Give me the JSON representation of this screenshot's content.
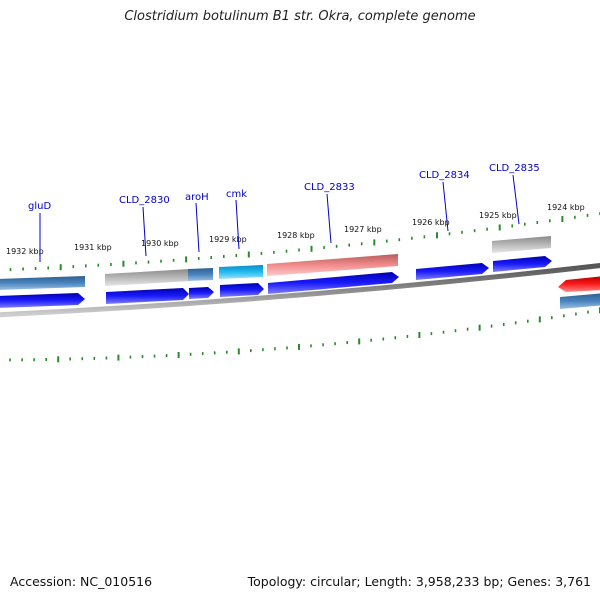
{
  "title": "Clostridium botulinum B1 str. Okra, complete genome",
  "footer": {
    "accession": "Accession: NC_010516",
    "summary": "Topology: circular; Length: 3,958,233 bp; Genes: 3,761"
  },
  "colors": {
    "backbone": "#7a7a7a",
    "tick": "#2a8a2a",
    "gene_label": "#0000cc",
    "cds_blue": "#1010e0",
    "steel_blue": "#4a7fb5",
    "grey": "#b4b4b4",
    "cyan": "#22b8ee",
    "salmon": "#ee8c8c",
    "red": "#ee1010"
  },
  "kbp_labels": [
    "1932 kbp",
    "1931 kbp",
    "1930 kbp",
    "1929 kbp",
    "1928 kbp",
    "1927 kbp",
    "1926 kbp",
    "1925 kbp",
    "1924 kbp"
  ],
  "gene_labels": [
    "gluD",
    "CLD_2830",
    "aroH",
    "cmk",
    "CLD_2833",
    "CLD_2834",
    "CLD_2835"
  ]
}
